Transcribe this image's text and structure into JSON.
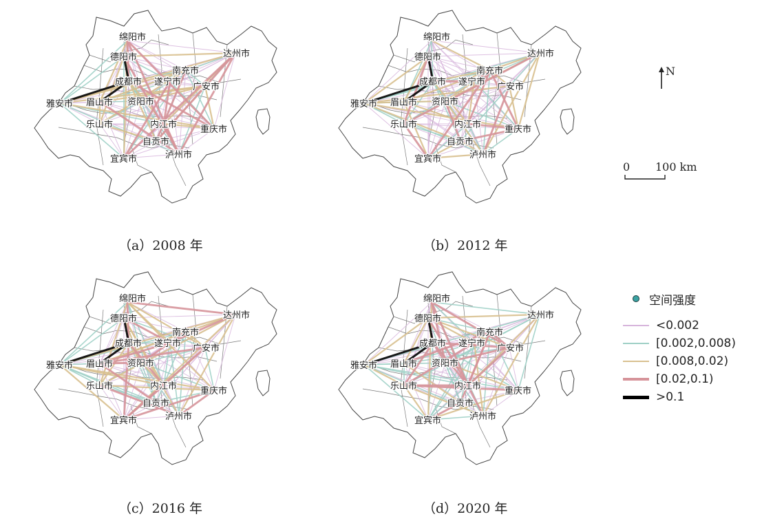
{
  "panels": [
    {
      "id": "a",
      "caption": "（a）2008 年"
    },
    {
      "id": "b",
      "caption": "（b）2012 年"
    },
    {
      "id": "c",
      "caption": "（c）2016 年"
    },
    {
      "id": "d",
      "caption": "（d）2020 年"
    }
  ],
  "cities": [
    {
      "key": "mianyang",
      "name": "绵阳市"
    },
    {
      "key": "deyang",
      "name": "德阳市"
    },
    {
      "key": "dazhou",
      "name": "达州市"
    },
    {
      "key": "nanchong",
      "name": "南充市"
    },
    {
      "key": "chengdu",
      "name": "成都市"
    },
    {
      "key": "suining",
      "name": "遂宁市"
    },
    {
      "key": "guangan",
      "name": "广安市"
    },
    {
      "key": "yaan",
      "name": "雅安市"
    },
    {
      "key": "meishan",
      "name": "眉山市"
    },
    {
      "key": "ziyang",
      "name": "资阳市"
    },
    {
      "key": "leshan",
      "name": "乐山市"
    },
    {
      "key": "neijiang",
      "name": "内江市"
    },
    {
      "key": "chongqing",
      "name": "重庆市"
    },
    {
      "key": "zigong",
      "name": "自贡市"
    },
    {
      "key": "yibin",
      "name": "宜宾市"
    },
    {
      "key": "luzhou",
      "name": "泸州市"
    }
  ],
  "north_arrow": {
    "label": "N"
  },
  "scale_bar": {
    "start": "0",
    "end": "100 km"
  },
  "legend": {
    "title": "空间强度",
    "classes": [
      {
        "label": "<0.002",
        "color": "#d7b5dc",
        "width": 1.2
      },
      {
        "label": "[0.002,0.008)",
        "color": "#9fd0c6",
        "width": 2
      },
      {
        "label": "[0.008,0.02)",
        "color": "#d8c08f",
        "width": 2.8
      },
      {
        "label": "[0.02,0.1)",
        "color": "#d6949a",
        "width": 3.6
      },
      {
        "label": ">0.1",
        "color": "#000000",
        "width": 5
      }
    ]
  }
}
